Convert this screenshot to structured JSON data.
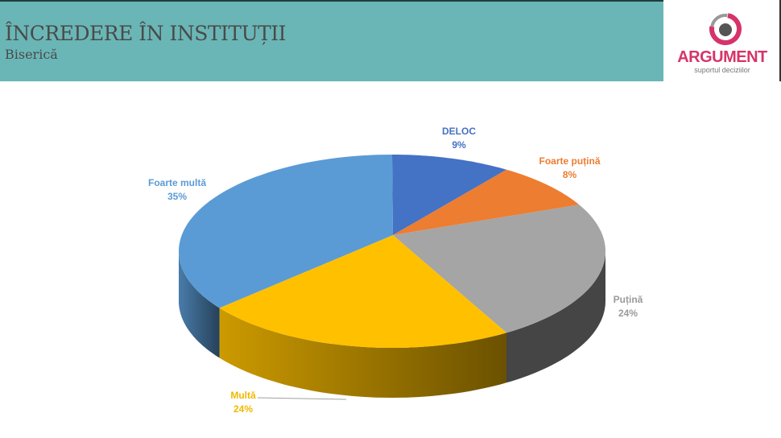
{
  "header": {
    "title": "ÎNCREDERE ÎN INSTITUȚII",
    "subtitle": "Biserică"
  },
  "logo": {
    "name": "ARGUMENT",
    "tagline": "suportul deciziilor",
    "color": "#d63469"
  },
  "chart_data": {
    "type": "pie",
    "style": "3d",
    "start": "top, clockwise",
    "slices": [
      {
        "label": "DELOC",
        "value": 9,
        "display": "9%",
        "color": "#4472C4"
      },
      {
        "label": "Foarte puțină",
        "value": 8,
        "display": "8%",
        "color": "#ED7D31"
      },
      {
        "label": "Puțină",
        "value": 24,
        "display": "24%",
        "color": "#A5A5A5"
      },
      {
        "label": "Multă",
        "value": 24,
        "display": "24%",
        "color": "#FFC000"
      },
      {
        "label": "Foarte multă",
        "value": 35,
        "display": "35%",
        "color": "#5B9BD5"
      }
    ]
  }
}
